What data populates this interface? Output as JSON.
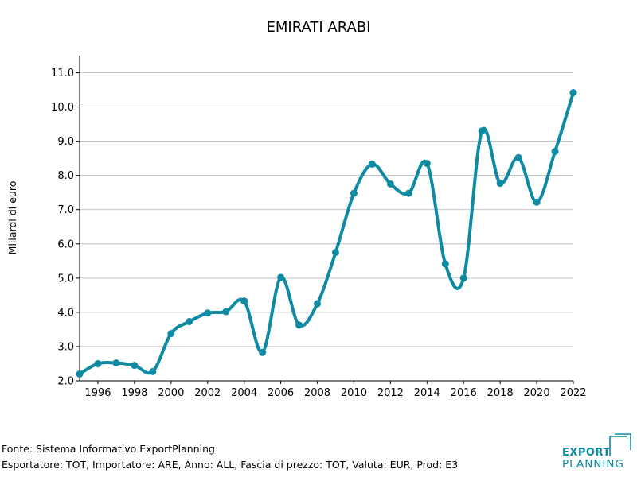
{
  "chart_data": {
    "type": "line",
    "title": "EMIRATI ARABI",
    "xlabel": "",
    "ylabel": "Miliardi di euro",
    "x": [
      1995,
      1996,
      1997,
      1998,
      1999,
      2000,
      2001,
      2002,
      2003,
      2004,
      2005,
      2006,
      2007,
      2008,
      2009,
      2010,
      2011,
      2012,
      2013,
      2014,
      2015,
      2016,
      2017,
      2018,
      2019,
      2020,
      2021,
      2022
    ],
    "series": [
      {
        "values": [
          2.2,
          2.5,
          2.52,
          2.45,
          2.27,
          3.38,
          3.73,
          3.98,
          4.02,
          4.33,
          2.83,
          5.02,
          3.63,
          4.25,
          5.75,
          7.48,
          8.33,
          7.75,
          7.48,
          8.35,
          5.42,
          5.0,
          9.3,
          7.77,
          8.52,
          7.22,
          8.7,
          10.42
        ]
      }
    ],
    "xlim": [
      1995,
      2022
    ],
    "ylim": [
      2.0,
      11.5
    ],
    "x_ticks": [
      "1996",
      "1998",
      "2000",
      "2002",
      "2004",
      "2006",
      "2008",
      "2010",
      "2012",
      "2014",
      "2016",
      "2018",
      "2020",
      "2022"
    ],
    "y_ticks": [
      "2.0",
      "3.0",
      "4.0",
      "5.0",
      "6.0",
      "7.0",
      "8.0",
      "9.0",
      "10.0",
      "11.0"
    ],
    "grid": "horizontal",
    "legend": "none",
    "line_color": "#0e8aa3",
    "grid_color": "#b0b0b0"
  },
  "footer": {
    "source": "Fonte: Sistema Informativo ExportPlanning",
    "filters": "Esportatore: TOT, Importatore: ARE, Anno: ALL, Fascia di prezzo: TOT, Valuta: EUR, Prod: E3"
  },
  "logo": {
    "top": "EXPORT",
    "bottom": "PLANNING",
    "color": "#0e8aa3"
  }
}
